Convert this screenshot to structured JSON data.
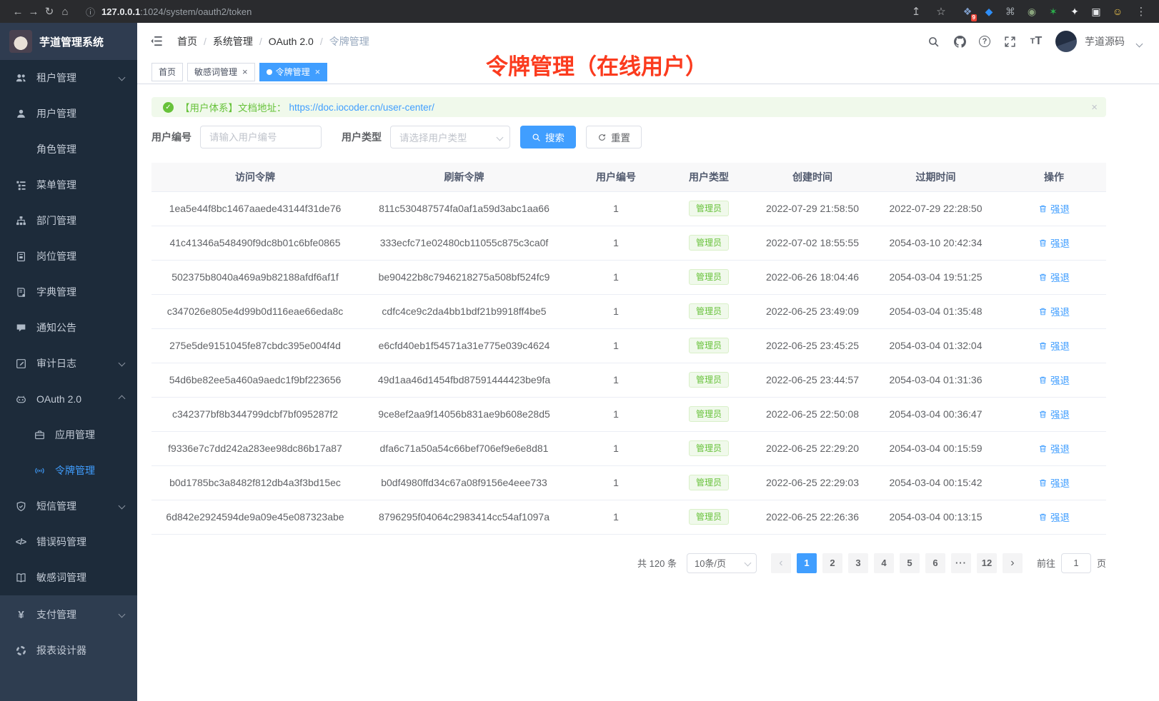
{
  "colors": {
    "accent": "#409eff",
    "success": "#67c23a",
    "annotation_red": "#fb3b1e",
    "sidebar_bg": "#1d2b3a"
  },
  "icons": {
    "back": "←",
    "forward": "→",
    "reload": "↻",
    "home": "⌂",
    "info": "ⓘ",
    "share": "↥",
    "star": "☆",
    "menu": "⋮",
    "check": "✓",
    "close": "×",
    "prev": "‹",
    "next": "›",
    "caret": "▾"
  },
  "browser": {
    "url_host": "127.0.0.1",
    "url_path": ":1024/system/oauth2/token",
    "extensions": [
      {
        "id": "grid-extension",
        "glyph": "❖",
        "color": "#7e9cc8",
        "badge": "9"
      },
      {
        "id": "gem",
        "glyph": "◆",
        "color": "#2e8ef7"
      },
      {
        "id": "command-circle",
        "glyph": "⌘",
        "color": "#9aa0a6"
      },
      {
        "id": "record-circle",
        "glyph": "◉",
        "color": "#8aa47d"
      },
      {
        "id": "green-star",
        "glyph": "✶",
        "color": "#2bb24c"
      },
      {
        "id": "pinwheel",
        "glyph": "✦",
        "color": "#f1f3f4"
      },
      {
        "id": "panel",
        "glyph": "▣",
        "color": "#e8eaed"
      },
      {
        "id": "smiley",
        "glyph": "☺",
        "color": "#f7cb4d"
      }
    ]
  },
  "sidebar": {
    "logo_title": "芋道管理系统",
    "items": [
      {
        "id": "tenant",
        "label": "租户管理",
        "icon": "users-icon",
        "chevron": "down"
      },
      {
        "id": "user",
        "label": "用户管理",
        "icon": "user-icon"
      },
      {
        "id": "role",
        "label": "角色管理",
        "icon": "role-icon"
      },
      {
        "id": "menu",
        "label": "菜单管理",
        "icon": "menu-tree-icon"
      },
      {
        "id": "dept",
        "label": "部门管理",
        "icon": "org-chart-icon"
      },
      {
        "id": "post",
        "label": "岗位管理",
        "icon": "badge-icon"
      },
      {
        "id": "dict",
        "label": "字典管理",
        "icon": "dictionary-icon"
      },
      {
        "id": "notice",
        "label": "通知公告",
        "icon": "announcement-icon"
      },
      {
        "id": "audit",
        "label": "审计日志",
        "icon": "audit-log-icon",
        "chevron": "down"
      },
      {
        "id": "oauth2",
        "label": "OAuth 2.0",
        "icon": "oauth-icon",
        "chevron": "up",
        "children": [
          {
            "id": "oauth2-app",
            "label": "应用管理",
            "icon": "briefcase-icon"
          },
          {
            "id": "oauth2-token",
            "label": "令牌管理",
            "icon": "token-icon",
            "active": true
          }
        ]
      },
      {
        "id": "sms",
        "label": "短信管理",
        "icon": "shield-icon",
        "chevron": "down"
      },
      {
        "id": "errcode",
        "label": "错误码管理",
        "icon": "code-icon"
      },
      {
        "id": "sensitive-word",
        "label": "敏感词管理",
        "icon": "open-book-icon"
      }
    ],
    "bottom_items": [
      {
        "id": "pay",
        "label": "支付管理",
        "icon": "yen-icon",
        "chevron": "down"
      },
      {
        "id": "report",
        "label": "报表设计器",
        "icon": "report-icon"
      }
    ]
  },
  "header": {
    "breadcrumb": [
      "首页",
      "系统管理",
      "OAuth 2.0",
      "令牌管理"
    ],
    "username": "芋道源码"
  },
  "tabs": [
    {
      "id": "home",
      "label": "首页",
      "active": false,
      "closable": false,
      "dot": false
    },
    {
      "id": "sensitive-word",
      "label": "敏感词管理",
      "active": false,
      "closable": true,
      "dot": false
    },
    {
      "id": "token",
      "label": "令牌管理",
      "active": true,
      "closable": true,
      "dot": true
    }
  ],
  "annotation": "令牌管理（在线用户）",
  "alert": {
    "prefix": "【用户体系】文档地址：",
    "link": "https://doc.iocoder.cn/user-center/"
  },
  "filters": {
    "user_id_label": "用户编号",
    "user_id_placeholder": "请输入用户编号",
    "user_type_label": "用户类型",
    "user_type_placeholder": "请选择用户类型",
    "search_label": "搜索",
    "reset_label": "重置"
  },
  "table": {
    "headers": [
      "访问令牌",
      "刷新令牌",
      "用户编号",
      "用户类型",
      "创建时间",
      "过期时间",
      "操作"
    ],
    "action_label": "强退",
    "rows": [
      {
        "access": "1ea5e44f8bc1467aaede43144f31de76",
        "refresh": "811c530487574fa0af1a59d3abc1aa66",
        "user_id": "1",
        "user_type": "管理员",
        "created": "2022-07-29 21:58:50",
        "expires": "2022-07-29 22:28:50"
      },
      {
        "access": "41c41346a548490f9dc8b01c6bfe0865",
        "refresh": "333ecfc71e02480cb11055c875c3ca0f",
        "user_id": "1",
        "user_type": "管理员",
        "created": "2022-07-02 18:55:55",
        "expires": "2054-03-10 20:42:34"
      },
      {
        "access": "502375b8040a469a9b82188afdf6af1f",
        "refresh": "be90422b8c7946218275a508bf524fc9",
        "user_id": "1",
        "user_type": "管理员",
        "created": "2022-06-26 18:04:46",
        "expires": "2054-03-04 19:51:25"
      },
      {
        "access": "c347026e805e4d99b0d116eae66eda8c",
        "refresh": "cdfc4ce9c2da4bb1bdf21b9918ff4be5",
        "user_id": "1",
        "user_type": "管理员",
        "created": "2022-06-25 23:49:09",
        "expires": "2054-03-04 01:35:48"
      },
      {
        "access": "275e5de9151045fe87cbdc395e004f4d",
        "refresh": "e6cfd40eb1f54571a31e775e039c4624",
        "user_id": "1",
        "user_type": "管理员",
        "created": "2022-06-25 23:45:25",
        "expires": "2054-03-04 01:32:04"
      },
      {
        "access": "54d6be82ee5a460a9aedc1f9bf223656",
        "refresh": "49d1aa46d1454fbd87591444423be9fa",
        "user_id": "1",
        "user_type": "管理员",
        "created": "2022-06-25 23:44:57",
        "expires": "2054-03-04 01:31:36"
      },
      {
        "access": "c342377bf8b344799dcbf7bf095287f2",
        "refresh": "9ce8ef2aa9f14056b831ae9b608e28d5",
        "user_id": "1",
        "user_type": "管理员",
        "created": "2022-06-25 22:50:08",
        "expires": "2054-03-04 00:36:47"
      },
      {
        "access": "f9336e7c7dd242a283ee98dc86b17a87",
        "refresh": "dfa6c71a50a54c66bef706ef9e6e8d81",
        "user_id": "1",
        "user_type": "管理员",
        "created": "2022-06-25 22:29:20",
        "expires": "2054-03-04 00:15:59"
      },
      {
        "access": "b0d1785bc3a8482f812db4a3f3bd15ec",
        "refresh": "b0df4980ffd34c67a08f9156e4eee733",
        "user_id": "1",
        "user_type": "管理员",
        "created": "2022-06-25 22:29:03",
        "expires": "2054-03-04 00:15:42"
      },
      {
        "access": "6d842e2924594de9a09e45e087323abe",
        "refresh": "8796295f04064c2983414cc54af1097a",
        "user_id": "1",
        "user_type": "管理员",
        "created": "2022-06-25 22:26:36",
        "expires": "2054-03-04 00:13:15"
      }
    ]
  },
  "pagination": {
    "total": "共 120 条",
    "page_size": "10条/页",
    "pages": [
      "1",
      "2",
      "3",
      "4",
      "5",
      "6",
      "···",
      "12"
    ],
    "active_page": "1",
    "goto_label": "前往",
    "goto_value": "1",
    "unit_label": "页"
  }
}
